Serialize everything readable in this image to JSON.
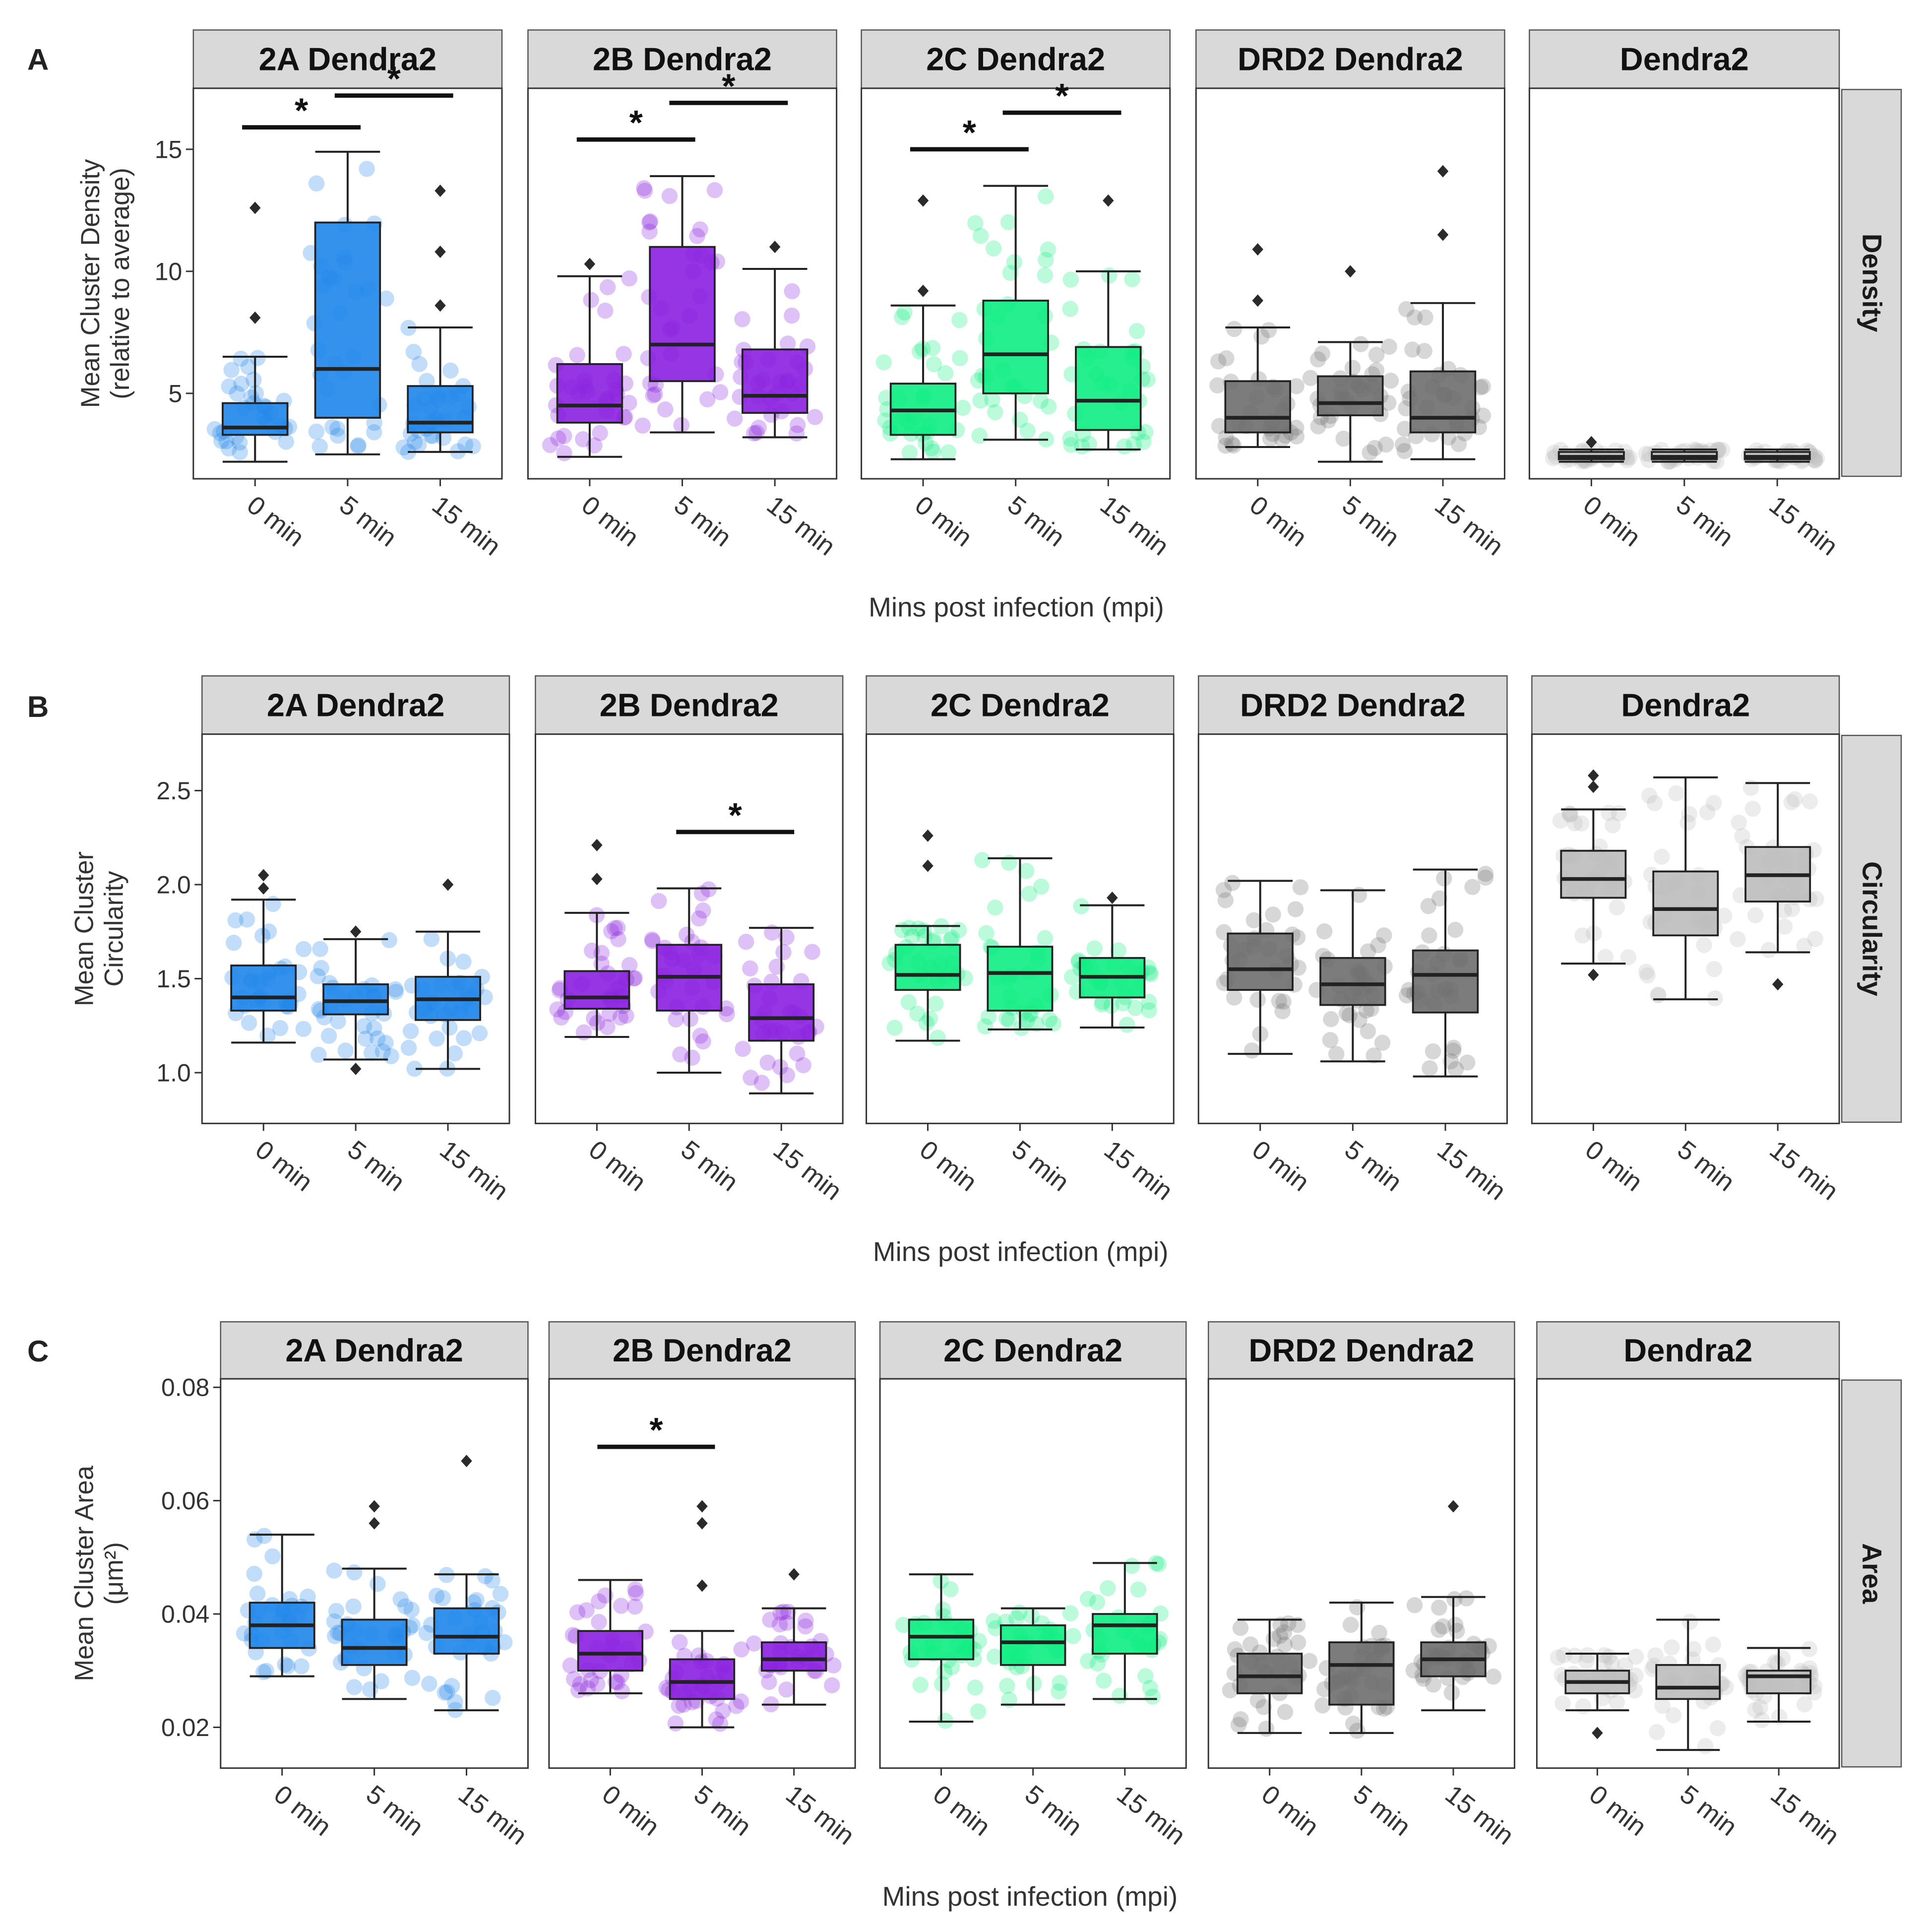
{
  "figure": {
    "x_axis_label": "Mins post infection (mpi)",
    "x_categories": [
      "0 min",
      "5 min",
      "15 min"
    ],
    "panels_shown": [
      "2A Dendra2",
      "2B Dendra2",
      "2C Dendra2",
      "DRD2 Dendra2",
      "Dendra2"
    ]
  },
  "colors": {
    "2A Dendra2": "#1f86ea",
    "2B Dendra2": "#8a1fe0",
    "2C Dendra2": "#0ded82",
    "DRD2 Dendra2": "#6e6e6e",
    "Dendra2": "#bcbcbc",
    "strip_background": "#d9d9d9",
    "outlier": "#2a2a2a"
  },
  "chart_data": [
    {
      "type": "box",
      "panel_label": "A",
      "metric_strip": "Density",
      "ylabel": [
        "Mean Cluster Density",
        "(relative to average)"
      ],
      "yticks": [
        5,
        10,
        15
      ],
      "ylim": [
        1.5,
        17.5
      ],
      "categories": [
        "0 min",
        "5 min",
        "15 min"
      ],
      "facets": [
        {
          "name": "2A Dendra2",
          "boxes": [
            {
              "whisker_low": 2.2,
              "q1": 3.3,
              "median": 3.6,
              "q3": 4.6,
              "whisker_high": 6.5,
              "outliers": [
                8.1,
                12.6
              ]
            },
            {
              "whisker_low": 2.5,
              "q1": 4.0,
              "median": 6.0,
              "q3": 12.0,
              "whisker_high": 14.9,
              "outliers": []
            },
            {
              "whisker_low": 2.6,
              "q1": 3.4,
              "median": 3.8,
              "q3": 5.3,
              "whisker_high": 7.7,
              "outliers": [
                8.6,
                10.8,
                13.3
              ]
            }
          ],
          "significance": [
            {
              "from": "0 min",
              "to": "5 min",
              "label": "*",
              "at": 15.9
            },
            {
              "from": "5 min",
              "to": "15 min",
              "label": "*",
              "at": 17.2
            }
          ]
        },
        {
          "name": "2B Dendra2",
          "boxes": [
            {
              "whisker_low": 2.4,
              "q1": 3.8,
              "median": 4.5,
              "q3": 6.2,
              "whisker_high": 9.8,
              "outliers": [
                10.3
              ]
            },
            {
              "whisker_low": 3.4,
              "q1": 5.5,
              "median": 7.0,
              "q3": 11.0,
              "whisker_high": 13.9,
              "outliers": []
            },
            {
              "whisker_low": 3.2,
              "q1": 4.2,
              "median": 4.9,
              "q3": 6.8,
              "whisker_high": 10.1,
              "outliers": [
                11.0
              ]
            }
          ],
          "significance": [
            {
              "from": "0 min",
              "to": "5 min",
              "label": "*",
              "at": 15.4
            },
            {
              "from": "5 min",
              "to": "15 min",
              "label": "*",
              "at": 16.9
            }
          ]
        },
        {
          "name": "2C Dendra2",
          "boxes": [
            {
              "whisker_low": 2.3,
              "q1": 3.3,
              "median": 4.3,
              "q3": 5.4,
              "whisker_high": 8.6,
              "outliers": [
                9.2,
                12.9
              ]
            },
            {
              "whisker_low": 3.1,
              "q1": 5.0,
              "median": 6.6,
              "q3": 8.8,
              "whisker_high": 13.5,
              "outliers": []
            },
            {
              "whisker_low": 2.7,
              "q1": 3.5,
              "median": 4.7,
              "q3": 6.9,
              "whisker_high": 10.0,
              "outliers": [
                12.9
              ]
            }
          ],
          "significance": [
            {
              "from": "0 min",
              "to": "5 min",
              "label": "*",
              "at": 15.0
            },
            {
              "from": "5 min",
              "to": "15 min",
              "label": "*",
              "at": 16.5
            }
          ]
        },
        {
          "name": "DRD2 Dendra2",
          "boxes": [
            {
              "whisker_low": 2.8,
              "q1": 3.4,
              "median": 4.0,
              "q3": 5.5,
              "whisker_high": 7.7,
              "outliers": [
                8.8,
                10.9
              ]
            },
            {
              "whisker_low": 2.2,
              "q1": 4.1,
              "median": 4.6,
              "q3": 5.7,
              "whisker_high": 7.1,
              "outliers": [
                10.0
              ]
            },
            {
              "whisker_low": 2.3,
              "q1": 3.4,
              "median": 4.0,
              "q3": 5.9,
              "whisker_high": 8.7,
              "outliers": [
                11.5,
                14.1
              ]
            }
          ],
          "significance": []
        },
        {
          "name": "Dendra2",
          "boxes": [
            {
              "whisker_low": 2.2,
              "q1": 2.3,
              "median": 2.4,
              "q3": 2.6,
              "whisker_high": 2.7,
              "outliers": [
                3.0
              ]
            },
            {
              "whisker_low": 2.2,
              "q1": 2.3,
              "median": 2.4,
              "q3": 2.6,
              "whisker_high": 2.7,
              "outliers": []
            },
            {
              "whisker_low": 2.2,
              "q1": 2.3,
              "median": 2.4,
              "q3": 2.6,
              "whisker_high": 2.7,
              "outliers": []
            }
          ],
          "significance": []
        }
      ]
    },
    {
      "type": "box",
      "panel_label": "B",
      "metric_strip": "Circularity",
      "ylabel": [
        "Mean Cluster",
        "Circularity"
      ],
      "yticks": [
        "1.0",
        "1.5",
        "2.0",
        "2.5"
      ],
      "ylim": [
        0.73,
        2.8
      ],
      "categories": [
        "0 min",
        "5 min",
        "15 min"
      ],
      "facets": [
        {
          "name": "2A Dendra2",
          "boxes": [
            {
              "whisker_low": 1.16,
              "q1": 1.33,
              "median": 1.4,
              "q3": 1.57,
              "whisker_high": 1.92,
              "outliers": [
                1.98,
                2.05
              ]
            },
            {
              "whisker_low": 1.07,
              "q1": 1.31,
              "median": 1.38,
              "q3": 1.47,
              "whisker_high": 1.71,
              "outliers": [
                1.02,
                1.75
              ]
            },
            {
              "whisker_low": 1.02,
              "q1": 1.28,
              "median": 1.39,
              "q3": 1.51,
              "whisker_high": 1.75,
              "outliers": [
                2.0
              ]
            }
          ],
          "significance": []
        },
        {
          "name": "2B Dendra2",
          "boxes": [
            {
              "whisker_low": 1.19,
              "q1": 1.34,
              "median": 1.4,
              "q3": 1.54,
              "whisker_high": 1.85,
              "outliers": [
                2.03,
                2.21
              ]
            },
            {
              "whisker_low": 1.0,
              "q1": 1.33,
              "median": 1.51,
              "q3": 1.68,
              "whisker_high": 1.98,
              "outliers": []
            },
            {
              "whisker_low": 0.89,
              "q1": 1.17,
              "median": 1.29,
              "q3": 1.47,
              "whisker_high": 1.77,
              "outliers": []
            }
          ],
          "significance": [
            {
              "from": "5 min",
              "to": "15 min",
              "label": "*",
              "at": 2.28
            }
          ]
        },
        {
          "name": "2C Dendra2",
          "boxes": [
            {
              "whisker_low": 1.17,
              "q1": 1.44,
              "median": 1.52,
              "q3": 1.68,
              "whisker_high": 1.78,
              "outliers": [
                2.1,
                2.26
              ]
            },
            {
              "whisker_low": 1.23,
              "q1": 1.33,
              "median": 1.53,
              "q3": 1.67,
              "whisker_high": 2.14,
              "outliers": []
            },
            {
              "whisker_low": 1.24,
              "q1": 1.4,
              "median": 1.51,
              "q3": 1.61,
              "whisker_high": 1.89,
              "outliers": [
                1.93
              ]
            }
          ],
          "significance": []
        },
        {
          "name": "DRD2 Dendra2",
          "boxes": [
            {
              "whisker_low": 1.1,
              "q1": 1.44,
              "median": 1.55,
              "q3": 1.74,
              "whisker_high": 2.02,
              "outliers": []
            },
            {
              "whisker_low": 1.06,
              "q1": 1.36,
              "median": 1.47,
              "q3": 1.61,
              "whisker_high": 1.97,
              "outliers": []
            },
            {
              "whisker_low": 0.98,
              "q1": 1.32,
              "median": 1.52,
              "q3": 1.65,
              "whisker_high": 2.08,
              "outliers": []
            }
          ],
          "significance": []
        },
        {
          "name": "Dendra2",
          "boxes": [
            {
              "whisker_low": 1.58,
              "q1": 1.93,
              "median": 2.03,
              "q3": 2.18,
              "whisker_high": 2.4,
              "outliers": [
                1.52,
                2.52,
                2.58
              ]
            },
            {
              "whisker_low": 1.39,
              "q1": 1.73,
              "median": 1.87,
              "q3": 2.07,
              "whisker_high": 2.57,
              "outliers": []
            },
            {
              "whisker_low": 1.64,
              "q1": 1.91,
              "median": 2.05,
              "q3": 2.2,
              "whisker_high": 2.54,
              "outliers": [
                1.47
              ]
            }
          ],
          "significance": []
        }
      ]
    },
    {
      "type": "box",
      "panel_label": "C",
      "metric_strip": "Area",
      "ylabel": [
        "Mean Cluster Area",
        "(μm²)"
      ],
      "yticks": [
        "0.02",
        "0.04",
        "0.06",
        "0.08"
      ],
      "ylim": [
        0.0128,
        0.0815
      ],
      "categories": [
        "0 min",
        "5 min",
        "15 min"
      ],
      "facets": [
        {
          "name": "2A Dendra2",
          "boxes": [
            {
              "whisker_low": 0.029,
              "q1": 0.034,
              "median": 0.038,
              "q3": 0.042,
              "whisker_high": 0.054,
              "outliers": []
            },
            {
              "whisker_low": 0.025,
              "q1": 0.031,
              "median": 0.034,
              "q3": 0.039,
              "whisker_high": 0.048,
              "outliers": [
                0.056,
                0.059
              ]
            },
            {
              "whisker_low": 0.023,
              "q1": 0.033,
              "median": 0.036,
              "q3": 0.041,
              "whisker_high": 0.047,
              "outliers": [
                0.067
              ]
            }
          ],
          "significance": []
        },
        {
          "name": "2B Dendra2",
          "boxes": [
            {
              "whisker_low": 0.026,
              "q1": 0.03,
              "median": 0.033,
              "q3": 0.037,
              "whisker_high": 0.046,
              "outliers": []
            },
            {
              "whisker_low": 0.02,
              "q1": 0.025,
              "median": 0.028,
              "q3": 0.032,
              "whisker_high": 0.037,
              "outliers": [
                0.045,
                0.056,
                0.059
              ]
            },
            {
              "whisker_low": 0.024,
              "q1": 0.03,
              "median": 0.032,
              "q3": 0.035,
              "whisker_high": 0.041,
              "outliers": [
                0.047
              ]
            }
          ],
          "significance": [
            {
              "from": "0 min",
              "to": "5 min",
              "label": "*",
              "at": 0.0695
            }
          ]
        },
        {
          "name": "2C Dendra2",
          "boxes": [
            {
              "whisker_low": 0.021,
              "q1": 0.032,
              "median": 0.036,
              "q3": 0.039,
              "whisker_high": 0.047,
              "outliers": []
            },
            {
              "whisker_low": 0.024,
              "q1": 0.031,
              "median": 0.035,
              "q3": 0.038,
              "whisker_high": 0.041,
              "outliers": []
            },
            {
              "whisker_low": 0.025,
              "q1": 0.033,
              "median": 0.038,
              "q3": 0.04,
              "whisker_high": 0.049,
              "outliers": []
            }
          ],
          "significance": []
        },
        {
          "name": "DRD2 Dendra2",
          "boxes": [
            {
              "whisker_low": 0.019,
              "q1": 0.026,
              "median": 0.029,
              "q3": 0.033,
              "whisker_high": 0.039,
              "outliers": []
            },
            {
              "whisker_low": 0.019,
              "q1": 0.024,
              "median": 0.031,
              "q3": 0.035,
              "whisker_high": 0.042,
              "outliers": []
            },
            {
              "whisker_low": 0.023,
              "q1": 0.029,
              "median": 0.032,
              "q3": 0.035,
              "whisker_high": 0.043,
              "outliers": [
                0.059
              ]
            }
          ],
          "significance": []
        },
        {
          "name": "Dendra2",
          "boxes": [
            {
              "whisker_low": 0.023,
              "q1": 0.026,
              "median": 0.028,
              "q3": 0.03,
              "whisker_high": 0.033,
              "outliers": [
                0.019
              ]
            },
            {
              "whisker_low": 0.016,
              "q1": 0.025,
              "median": 0.027,
              "q3": 0.031,
              "whisker_high": 0.039,
              "outliers": []
            },
            {
              "whisker_low": 0.021,
              "q1": 0.026,
              "median": 0.029,
              "q3": 0.03,
              "whisker_high": 0.034,
              "outliers": []
            }
          ],
          "significance": []
        }
      ]
    }
  ]
}
